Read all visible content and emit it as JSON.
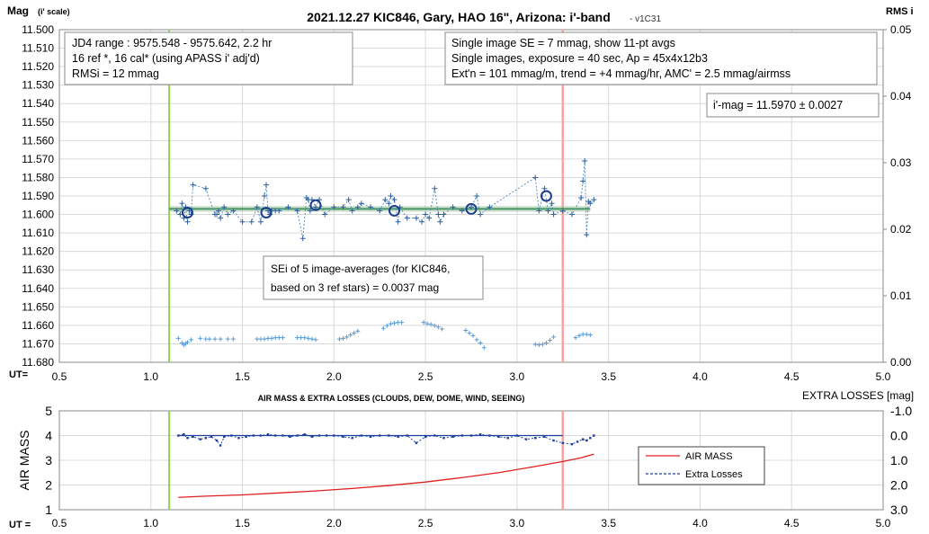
{
  "chart_data": [
    {
      "type": "scatter",
      "title": "2021.12.27 KIC846, Gary, HAO 16\", Arizona: i'-band",
      "version": "- v1C31",
      "ylabel": "Mag",
      "ylabel_suffix": "(i' scale)",
      "y2label": "RMS i",
      "xlabel": "UT=",
      "xlim": [
        0.5,
        5.0
      ],
      "ylim": [
        11.5,
        11.68
      ],
      "y_inverted": true,
      "y2lim": [
        0.0,
        0.05
      ],
      "x_ticks": [
        "0.5",
        "1.0",
        "1.5",
        "2.0",
        "2.5",
        "3.0",
        "3.5",
        "4.0",
        "4.5",
        "5.0"
      ],
      "y_ticks": [
        "11.500",
        "11.510",
        "11.520",
        "11.530",
        "11.540",
        "11.550",
        "11.560",
        "11.570",
        "11.580",
        "11.590",
        "11.600",
        "11.610",
        "11.620",
        "11.630",
        "11.640",
        "11.650",
        "11.660",
        "11.670",
        "11.680"
      ],
      "y2_ticks": [
        "0.00",
        "0.01",
        "0.02",
        "0.03",
        "0.04",
        "0.05"
      ],
      "grid": true,
      "colors": {
        "single": "#4a86c0",
        "avg": "#1f3f8f",
        "model": "#8fbc8f",
        "model_core": "#2e8b57",
        "green_line": "#92d050",
        "red_line": "#f4a6a6",
        "rms": "#5b9bd5"
      },
      "vertical_markers": [
        1.1,
        3.25
      ],
      "model_line": {
        "x": [
          1.1,
          3.4
        ],
        "y": [
          11.597,
          11.597
        ]
      },
      "single_images": {
        "x": [
          1.14,
          1.16,
          1.17,
          1.18,
          1.19,
          1.2,
          1.21,
          1.22,
          1.23,
          1.3,
          1.35,
          1.36,
          1.37,
          1.38,
          1.4,
          1.42,
          1.45,
          1.5,
          1.55,
          1.58,
          1.6,
          1.62,
          1.63,
          1.64,
          1.65,
          1.66,
          1.68,
          1.7,
          1.75,
          1.8,
          1.83,
          1.85,
          1.86,
          1.87,
          1.88,
          1.9,
          1.92,
          1.95,
          2.0,
          2.05,
          2.08,
          2.1,
          2.13,
          2.15,
          2.2,
          2.25,
          2.28,
          2.3,
          2.31,
          2.33,
          2.35,
          2.36,
          2.4,
          2.45,
          2.48,
          2.5,
          2.52,
          2.55,
          2.57,
          2.58,
          2.6,
          2.65,
          2.7,
          2.75,
          2.78,
          2.8,
          2.85,
          3.1,
          3.12,
          3.15,
          3.17,
          3.19,
          3.2,
          3.25,
          3.3,
          3.35,
          3.36,
          3.37,
          3.38,
          3.39,
          3.4,
          3.42
        ],
        "y": [
          11.598,
          11.6,
          11.594,
          11.602,
          11.596,
          11.604,
          11.598,
          11.6,
          11.584,
          11.586,
          11.6,
          11.6,
          11.598,
          11.602,
          11.596,
          11.6,
          11.598,
          11.604,
          11.604,
          11.596,
          11.604,
          11.59,
          11.584,
          11.598,
          11.6,
          11.598,
          11.598,
          11.598,
          11.596,
          11.598,
          11.613,
          11.591,
          11.592,
          11.598,
          11.592,
          11.596,
          11.592,
          11.6,
          11.596,
          11.596,
          11.592,
          11.598,
          11.596,
          11.594,
          11.596,
          11.598,
          11.592,
          11.594,
          11.59,
          11.592,
          11.604,
          11.596,
          11.602,
          11.602,
          11.604,
          11.6,
          11.602,
          11.586,
          11.6,
          11.604,
          11.6,
          11.596,
          11.598,
          11.596,
          11.59,
          11.6,
          11.596,
          11.58,
          11.598,
          11.586,
          11.598,
          11.594,
          11.6,
          11.598,
          11.6,
          11.591,
          11.582,
          11.571,
          11.611,
          11.593,
          11.594,
          11.592
        ],
        "name": "Single images"
      },
      "averages": {
        "x": [
          1.2,
          1.63,
          1.9,
          2.33,
          2.75,
          3.16
        ],
        "y": [
          11.599,
          11.599,
          11.595,
          11.598,
          11.597,
          11.59
        ]
      },
      "rms": {
        "x": [
          1.15,
          1.17,
          1.18,
          1.19,
          1.2,
          1.22,
          1.27,
          1.3,
          1.32,
          1.35,
          1.38,
          1.42,
          1.45,
          1.58,
          1.6,
          1.62,
          1.64,
          1.66,
          1.68,
          1.7,
          1.72,
          1.8,
          1.82,
          1.84,
          1.86,
          1.88,
          1.9,
          2.03,
          2.05,
          2.07,
          2.09,
          2.11,
          2.13,
          2.27,
          2.29,
          2.31,
          2.33,
          2.35,
          2.37,
          2.49,
          2.51,
          2.53,
          2.55,
          2.57,
          2.59,
          2.72,
          2.74,
          2.76,
          2.78,
          2.8,
          2.82,
          3.1,
          3.12,
          3.14,
          3.16,
          3.18,
          3.2,
          3.32,
          3.34,
          3.36,
          3.38,
          3.4
        ],
        "y": [
          0.0036,
          0.0029,
          0.0026,
          0.0028,
          0.003,
          0.0034,
          0.0036,
          0.0035,
          0.0035,
          0.0035,
          0.0035,
          0.0035,
          0.0035,
          0.0035,
          0.0035,
          0.0035,
          0.0036,
          0.0036,
          0.0037,
          0.0037,
          0.0037,
          0.0037,
          0.0037,
          0.0037,
          0.0036,
          0.0035,
          0.0034,
          0.0035,
          0.0036,
          0.0038,
          0.0041,
          0.0044,
          0.0047,
          0.0051,
          0.0055,
          0.0058,
          0.0059,
          0.006,
          0.006,
          0.006,
          0.0058,
          0.0057,
          0.0055,
          0.0053,
          0.005,
          0.0048,
          0.0044,
          0.004,
          0.0034,
          0.0029,
          0.0022,
          0.0027,
          0.0026,
          0.0027,
          0.0029,
          0.0033,
          0.0038,
          0.0037,
          0.004,
          0.0042,
          0.0042,
          0.0041
        ]
      },
      "annotations": {
        "box1": [
          "JD4 range : 9575.548 - 9575.642, 2.2  hr",
          "16 ref *, 16 cal* (using APASS i' adj'd)",
          "RMSi = 12 mmag"
        ],
        "box2": [
          "Single image SE = 7 mmag, show 11-pt avgs",
          "Single images, exposure = 40 sec, Ap = 45x4x12b3",
          "Ext'n = 101 mmag/m, trend = +4 mmag/hr, AMC' = 2.5 mmag/airmss"
        ],
        "box3": [
          "i'-mag = 11.5970 ± 0.0027"
        ],
        "box4": [
          "SEi of 5 image-averages (for KIC846,",
          "based on 3 ref stars) = 0.0037 mag"
        ]
      }
    },
    {
      "type": "line",
      "title": "AIR MASS & EXTRA LOSSES (CLOUDS, DEW, DOME, WIND, SEEING)",
      "ylabel": "AIR MASS",
      "y2label": "EXTRA LOSSES [mag]",
      "xlabel": "UT =",
      "xlim": [
        0.5,
        5.0
      ],
      "ylim": [
        1,
        5
      ],
      "y2lim": [
        -1.0,
        3.0
      ],
      "y2_inverted": true,
      "x_ticks": [
        "0.5",
        "1.0",
        "1.5",
        "2.0",
        "2.5",
        "3.0",
        "3.5",
        "4.0",
        "4.5",
        "5.0"
      ],
      "y_ticks": [
        "1",
        "2",
        "3",
        "4",
        "5"
      ],
      "y2_ticks": [
        "-1.0",
        "0.0",
        "1.0",
        "2.0",
        "3.0"
      ],
      "grid": true,
      "vertical_markers": [
        1.1,
        3.25
      ],
      "series": [
        {
          "name": "AIR MASS",
          "color": "#e02020",
          "x": [
            1.15,
            1.3,
            1.5,
            1.7,
            1.9,
            2.1,
            2.3,
            2.5,
            2.7,
            2.9,
            3.1,
            3.25,
            3.35,
            3.42
          ],
          "y": [
            1.5,
            1.55,
            1.6,
            1.68,
            1.76,
            1.86,
            1.98,
            2.12,
            2.3,
            2.5,
            2.75,
            2.95,
            3.1,
            3.25
          ]
        },
        {
          "name": "Extra Losses",
          "color": "#1f3f9f",
          "x": [
            1.15,
            1.18,
            1.2,
            1.23,
            1.27,
            1.3,
            1.33,
            1.36,
            1.38,
            1.4,
            1.44,
            1.48,
            1.52,
            1.56,
            1.6,
            1.64,
            1.68,
            1.72,
            1.76,
            1.8,
            1.84,
            1.88,
            1.92,
            1.96,
            2.0,
            2.05,
            2.1,
            2.15,
            2.2,
            2.25,
            2.3,
            2.35,
            2.4,
            2.45,
            2.5,
            2.55,
            2.6,
            2.65,
            2.7,
            2.75,
            2.8,
            2.85,
            2.9,
            2.95,
            3.0,
            3.05,
            3.1,
            3.15,
            3.2,
            3.25,
            3.3,
            3.33,
            3.36,
            3.38,
            3.4,
            3.42
          ],
          "y": [
            0.0,
            -0.05,
            0.1,
            0.05,
            0.15,
            0.1,
            0.05,
            0.2,
            0.4,
            0.05,
            0.0,
            0.1,
            0.05,
            0.0,
            0.0,
            -0.05,
            0.0,
            0.0,
            0.05,
            0.0,
            -0.05,
            0.05,
            0.0,
            0.0,
            0.0,
            0.05,
            0.1,
            0.0,
            0.05,
            0.0,
            0.0,
            0.05,
            0.0,
            0.3,
            0.05,
            0.0,
            0.1,
            0.05,
            0.0,
            0.0,
            -0.05,
            0.0,
            0.05,
            0.1,
            0.0,
            0.15,
            0.1,
            0.05,
            0.2,
            0.3,
            0.35,
            0.25,
            0.15,
            0.2,
            0.1,
            0.0
          ]
        }
      ],
      "legend_position": "right"
    }
  ]
}
